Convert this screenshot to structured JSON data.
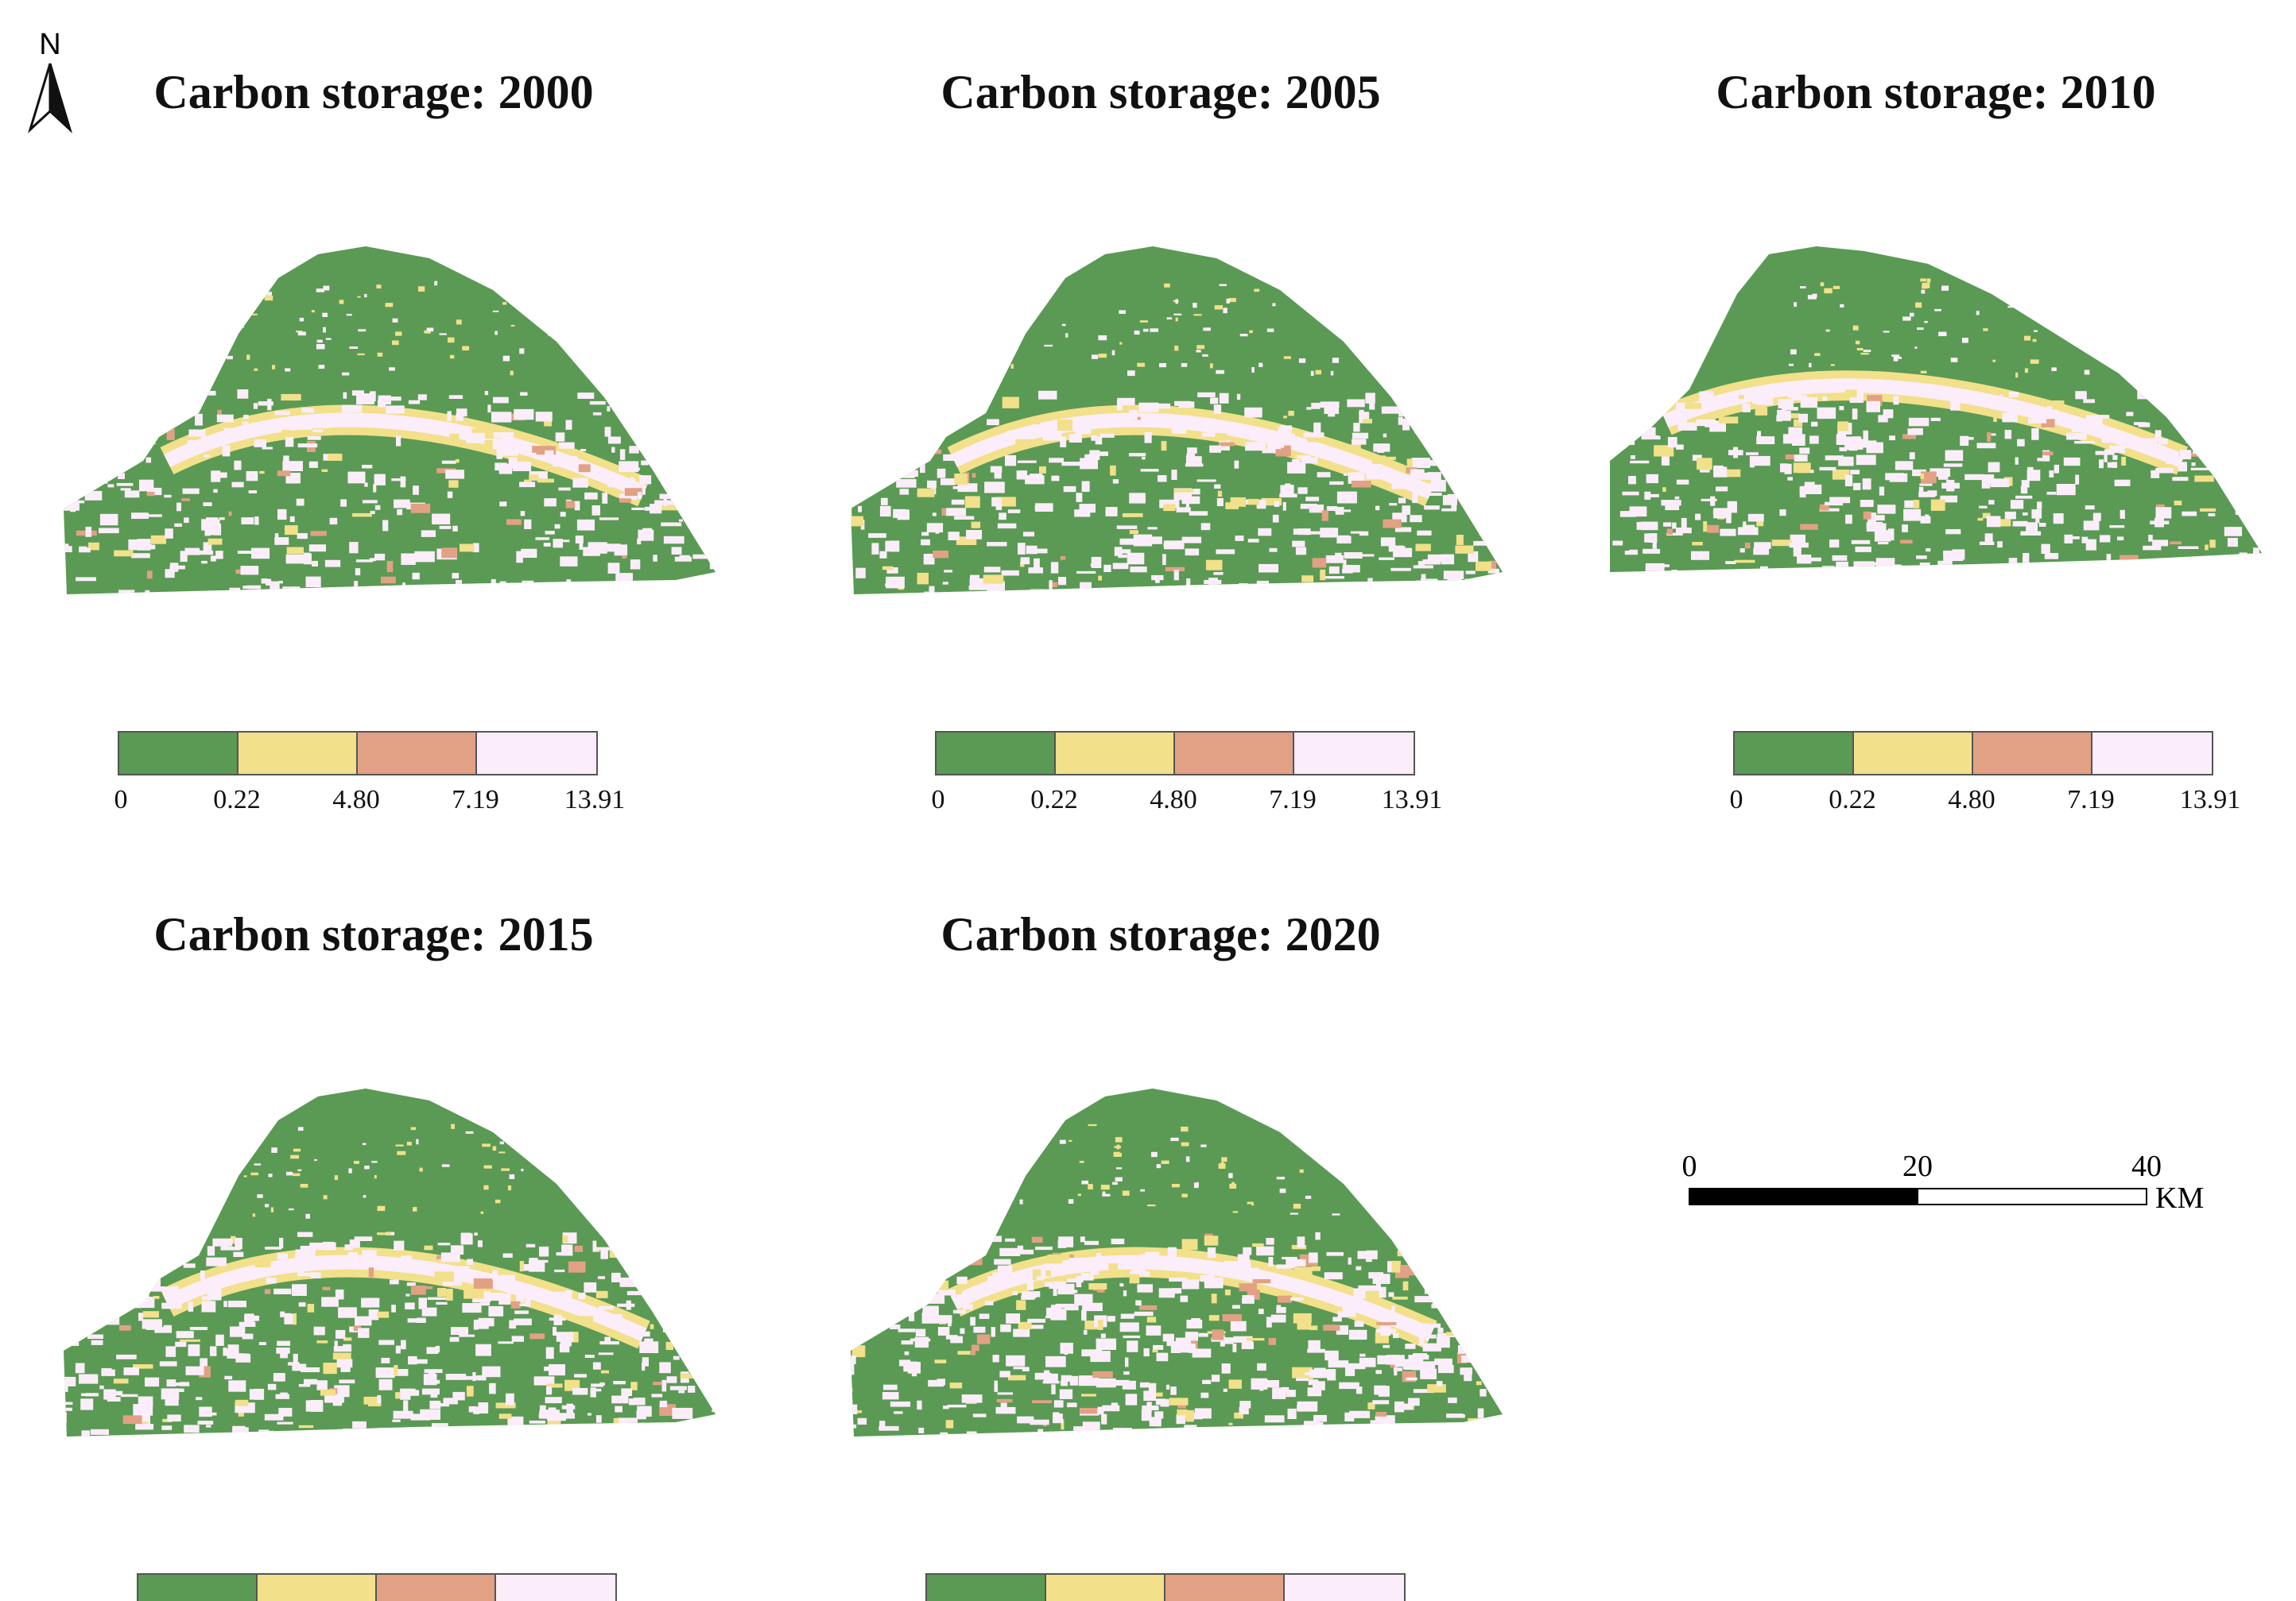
{
  "north_arrow": {
    "label": "N"
  },
  "colors": {
    "c1": "#5a9a54",
    "c2": "#f2e08a",
    "c3": "#e2a184",
    "c4": "#fcedfa"
  },
  "legend_ticks": [
    "0",
    "0.22",
    "4.80",
    "7.19",
    "13.91"
  ],
  "panels": [
    {
      "title": "Carbon storage: 2000",
      "shape": "broad"
    },
    {
      "title": "Carbon storage: 2005",
      "shape": "broad"
    },
    {
      "title": "Carbon storage: 2010",
      "shape": "narrow"
    },
    {
      "title": "Carbon storage: 2015",
      "shape": "broad"
    },
    {
      "title": "Carbon storage: 2020",
      "shape": "broad"
    }
  ],
  "scale_bar": {
    "ticks": [
      "0",
      "20",
      "40"
    ],
    "unit": "KM"
  }
}
